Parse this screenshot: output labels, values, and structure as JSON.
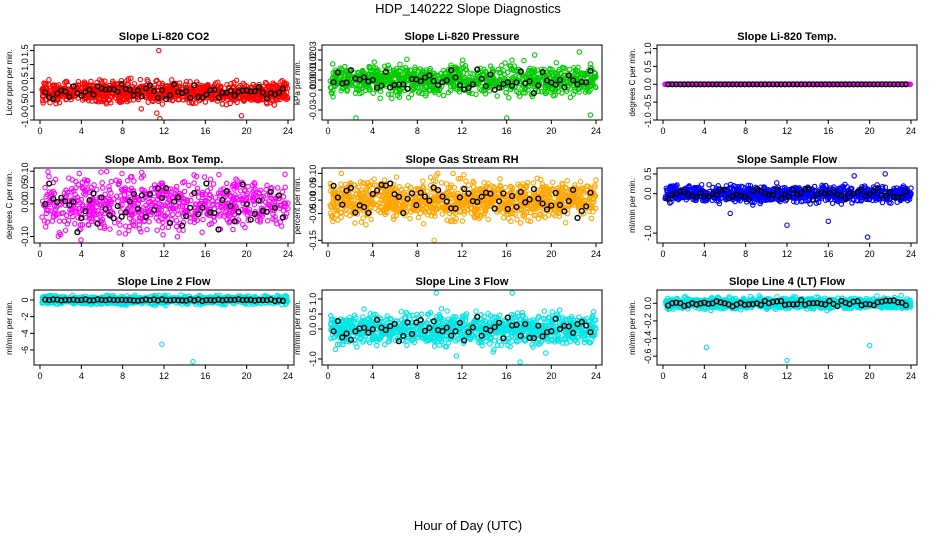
{
  "figure": {
    "title": "HDP_140222  Slope Diagnostics",
    "xlabel": "Hour of Day (UTC)"
  },
  "chart_data": [
    {
      "type": "scatter",
      "title": "Slope Li-820 CO2",
      "ylabel": "Licor ppm per min.",
      "xlim": [
        0,
        24
      ],
      "ylim": [
        -1.0,
        1.7
      ],
      "xticks": [
        "0",
        "4",
        "8",
        "12",
        "16",
        "20",
        "24"
      ],
      "yticks": [
        {
          "v": -1.0,
          "label": "-1.0"
        },
        {
          "v": -0.5,
          "label": "-0.5"
        },
        {
          "v": 0.0,
          "label": "0.0"
        },
        {
          "v": 0.5,
          "label": "0.5"
        },
        {
          "v": 1.0,
          "label": "1.0"
        },
        {
          "v": 1.5,
          "label": "1.5"
        }
      ],
      "color": "#ff0000",
      "mean": 0.0,
      "spread": 0.18,
      "density": 40,
      "outliers": [
        {
          "x": 11.5,
          "y": 1.5
        },
        {
          "x": 11.3,
          "y": -0.75
        },
        {
          "x": 11.6,
          "y": -0.95
        },
        {
          "x": 9.8,
          "y": -0.6
        },
        {
          "x": 19.5,
          "y": -0.85
        },
        {
          "x": 8.8,
          "y": 0.5
        }
      ],
      "black_spread": 0.15
    },
    {
      "type": "scatter",
      "title": "Slope Li-820 Pressure",
      "ylabel": "kPa per min.",
      "xlim": [
        0,
        24
      ],
      "ylim": [
        -0.04,
        0.035
      ],
      "xticks": [
        "0",
        "4",
        "8",
        "12",
        "16",
        "20",
        "24"
      ],
      "yticks": [
        {
          "v": -0.03,
          "label": "-0.03"
        },
        {
          "v": -0.01,
          "label": "-0.01"
        },
        {
          "v": 0.0,
          "label": "0.00"
        },
        {
          "v": 0.01,
          "label": "0.01"
        },
        {
          "v": 0.02,
          "label": "0.02"
        },
        {
          "v": 0.03,
          "label": "0.03"
        }
      ],
      "color": "#00cc00",
      "mean": 0.0,
      "spread": 0.007,
      "density": 40,
      "outliers": [
        {
          "x": 2.5,
          "y": -0.038
        },
        {
          "x": 16.0,
          "y": -0.038
        },
        {
          "x": 23.5,
          "y": -0.035
        },
        {
          "x": 22.5,
          "y": 0.028
        },
        {
          "x": 18.5,
          "y": 0.025
        }
      ],
      "black_spread": 0.006
    },
    {
      "type": "scatter",
      "title": "Slope Li-820 Temp.",
      "ylabel": "degrees C per min.",
      "xlim": [
        0,
        24
      ],
      "ylim": [
        -1.0,
        1.1
      ],
      "xticks": [
        "0",
        "4",
        "8",
        "12",
        "16",
        "20",
        "24"
      ],
      "yticks": [
        {
          "v": -1.0,
          "label": "-1.0"
        },
        {
          "v": -0.5,
          "label": "-0.5"
        },
        {
          "v": 0.0,
          "label": "0.0"
        },
        {
          "v": 0.5,
          "label": "0.5"
        },
        {
          "v": 1.0,
          "label": "1.0"
        }
      ],
      "color": "#ff00ff",
      "mean": 0.0,
      "spread": 0.0,
      "density": 40,
      "outliers": [],
      "black_spread": 0.0
    },
    {
      "type": "scatter",
      "title": "Slope Amb. Box Temp.",
      "ylabel": "degrees C per min.",
      "xlim": [
        0,
        24
      ],
      "ylim": [
        -0.12,
        0.11
      ],
      "xticks": [
        "0",
        "4",
        "8",
        "12",
        "16",
        "20",
        "24"
      ],
      "yticks": [
        {
          "v": -0.1,
          "label": "-0.10"
        },
        {
          "v": 0.0,
          "label": "0.00"
        },
        {
          "v": 0.05,
          "label": "0.05"
        },
        {
          "v": 0.1,
          "label": "0.10"
        }
      ],
      "color": "#ff00ff",
      "mean": 0.0,
      "spread": 0.04,
      "density": 30,
      "outliers": [],
      "black_spread": 0.035
    },
    {
      "type": "scatter",
      "title": "Slope Gas Stream RH",
      "ylabel": "percent per min.",
      "xlim": [
        0,
        24
      ],
      "ylim": [
        -0.16,
        0.12
      ],
      "xticks": [
        "0",
        "4",
        "8",
        "12",
        "16",
        "20",
        "24"
      ],
      "yticks": [
        {
          "v": -0.15,
          "label": "-0.15"
        },
        {
          "v": -0.05,
          "label": "-0.05"
        },
        {
          "v": 0.0,
          "label": "0.00"
        },
        {
          "v": 0.05,
          "label": "0.05"
        },
        {
          "v": 0.1,
          "label": "0.10"
        }
      ],
      "color": "#ffa500",
      "mean": 0.0,
      "spread": 0.035,
      "density": 45,
      "outliers": [
        {
          "x": 1.2,
          "y": 0.1
        },
        {
          "x": 11.2,
          "y": 0.1
        },
        {
          "x": 9.5,
          "y": -0.15
        }
      ],
      "black_spread": 0.03
    },
    {
      "type": "scatter",
      "title": "Slope Sample Flow",
      "ylabel": "ml/min per min.",
      "xlim": [
        0,
        24
      ],
      "ylim": [
        -1.25,
        0.65
      ],
      "xticks": [
        "0",
        "4",
        "8",
        "12",
        "16",
        "20",
        "24"
      ],
      "yticks": [
        {
          "v": -1.0,
          "label": "-1.0"
        },
        {
          "v": 0.0,
          "label": "0.0"
        },
        {
          "v": 0.5,
          "label": "0.5"
        }
      ],
      "color": "#0000ff",
      "mean": 0.0,
      "spread": 0.1,
      "density": 40,
      "outliers": [
        {
          "x": 19.8,
          "y": -1.1
        },
        {
          "x": 12.0,
          "y": -0.8
        },
        {
          "x": 16.0,
          "y": -0.7
        },
        {
          "x": 6.5,
          "y": -0.5
        },
        {
          "x": 21.5,
          "y": 0.5
        },
        {
          "x": 18.5,
          "y": 0.45
        }
      ],
      "black_spread": 0.07
    },
    {
      "type": "scatter",
      "title": "Slope Line 2 Flow",
      "ylabel": "ml/min per min.",
      "xlim": [
        0,
        24
      ],
      "ylim": [
        -7.8,
        1.2
      ],
      "xticks": [
        "0",
        "4",
        "8",
        "12",
        "16",
        "20",
        "24"
      ],
      "yticks": [
        {
          "v": -6,
          "label": "-6"
        },
        {
          "v": -4,
          "label": "-4"
        },
        {
          "v": -2,
          "label": "-2"
        },
        {
          "v": 0,
          "label": "0"
        }
      ],
      "color": "#00e5e5",
      "mean": 0.0,
      "spread": 0.25,
      "density": 40,
      "outliers": [
        {
          "x": 11.8,
          "y": -5.3
        },
        {
          "x": 14.8,
          "y": -7.4
        }
      ],
      "black_spread": 0.05
    },
    {
      "type": "scatter",
      "title": "Slope Line 3 Flow",
      "ylabel": "ml/min per min.",
      "xlim": [
        0,
        24
      ],
      "ylim": [
        -1.2,
        1.3
      ],
      "xticks": [
        "0",
        "4",
        "8",
        "12",
        "16",
        "20",
        "24"
      ],
      "yticks": [
        {
          "v": -1.0,
          "label": "-1.0"
        },
        {
          "v": 0.0,
          "label": "0.0"
        },
        {
          "v": 0.5,
          "label": "0.5"
        },
        {
          "v": 1.0,
          "label": "1.0"
        }
      ],
      "color": "#00e5e5",
      "mean": 0.0,
      "spread": 0.25,
      "density": 45,
      "outliers": [
        {
          "x": 9.7,
          "y": 1.2
        },
        {
          "x": 16.5,
          "y": 1.2
        },
        {
          "x": 17.2,
          "y": -1.1
        },
        {
          "x": 11.5,
          "y": -0.9
        },
        {
          "x": 19.5,
          "y": -0.8
        }
      ],
      "black_spread": 0.2
    },
    {
      "type": "scatter",
      "title": "Slope Line 4 (LT) Flow",
      "ylabel": "ml/min per min.",
      "xlim": [
        0,
        24
      ],
      "ylim": [
        -0.7,
        0.15
      ],
      "xticks": [
        "0",
        "4",
        "8",
        "12",
        "16",
        "20",
        "24"
      ],
      "yticks": [
        {
          "v": -0.6,
          "label": "-0.6"
        },
        {
          "v": -0.4,
          "label": "-0.4"
        },
        {
          "v": -0.2,
          "label": "-0.2"
        },
        {
          "v": 0.0,
          "label": "0.0"
        }
      ],
      "color": "#00e5e5",
      "mean": 0.0,
      "spread": 0.03,
      "density": 40,
      "outliers": [
        {
          "x": 4.2,
          "y": -0.5
        },
        {
          "x": 12.0,
          "y": -0.65
        },
        {
          "x": 20.0,
          "y": -0.48
        }
      ],
      "black_spread": 0.015
    }
  ]
}
